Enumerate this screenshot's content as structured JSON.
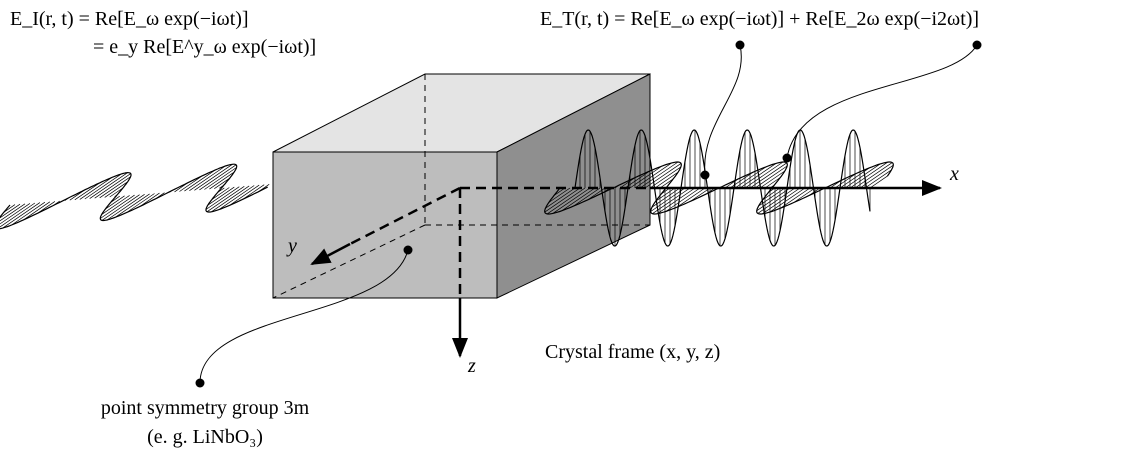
{
  "incident": {
    "line1": "E_I(r, t) = Re[E_ω exp(−iωt)]",
    "line2": "= e_y Re[E^y_ω exp(−iωt)]"
  },
  "transmitted": "E_T(r, t) = Re[E_ω exp(−iωt)] + Re[E_2ω exp(−i2ωt)]",
  "axes": {
    "x": "x",
    "y": "y",
    "z": "z"
  },
  "frame": "Crystal frame (x, y, z)",
  "symmetry": {
    "line1": "point symmetry group 3m",
    "line2": "(e. g. LiNbO₃)"
  }
}
